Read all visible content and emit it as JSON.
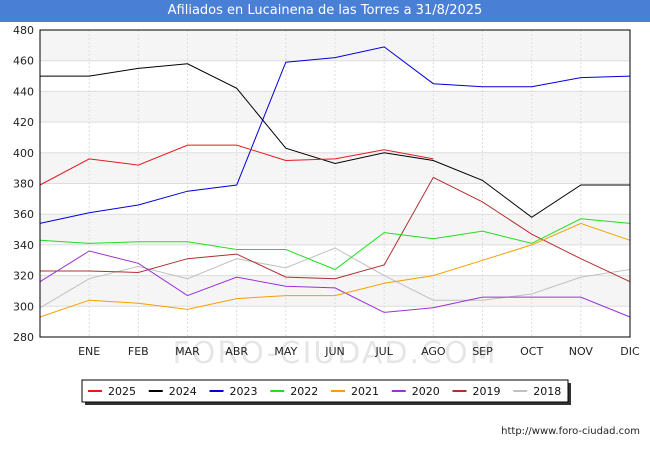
{
  "chart_data": {
    "type": "line",
    "title": "Afiliados en Lucainena de las Torres a 31/8/2025",
    "categories": [
      "",
      "ENE",
      "FEB",
      "MAR",
      "ABR",
      "MAY",
      "JUN",
      "JUL",
      "AGO",
      "SEP",
      "OCT",
      "NOV",
      "DIC"
    ],
    "ylim": [
      280,
      480
    ],
    "yticks": [
      280,
      300,
      320,
      340,
      360,
      380,
      400,
      420,
      440,
      460,
      480
    ],
    "grid": true,
    "legend_position": "bottom",
    "series": [
      {
        "name": "2025",
        "color": "#e41a1c",
        "values": [
          379,
          396,
          392,
          405,
          405,
          395,
          396,
          402,
          396,
          null,
          null,
          null,
          null
        ]
      },
      {
        "name": "2024",
        "color": "#000000",
        "values": [
          450,
          450,
          455,
          458,
          442,
          403,
          393,
          400,
          395,
          382,
          358,
          379,
          379
        ]
      },
      {
        "name": "2023",
        "color": "#0000dd",
        "values": [
          354,
          361,
          366,
          375,
          379,
          459,
          462,
          469,
          445,
          443,
          443,
          449,
          450
        ]
      },
      {
        "name": "2022",
        "color": "#22dd22",
        "values": [
          343,
          341,
          342,
          342,
          337,
          337,
          324,
          348,
          344,
          349,
          341,
          357,
          354
        ]
      },
      {
        "name": "2021",
        "color": "#f5a000",
        "values": [
          293,
          304,
          302,
          298,
          305,
          307,
          307,
          315,
          320,
          330,
          340,
          354,
          343
        ]
      },
      {
        "name": "2020",
        "color": "#9a32d6",
        "values": [
          316,
          336,
          328,
          307,
          319,
          313,
          312,
          296,
          299,
          306,
          306,
          306,
          293
        ]
      },
      {
        "name": "2019",
        "color": "#b03030",
        "values": [
          323,
          323,
          322,
          331,
          334,
          319,
          318,
          327,
          384,
          368,
          347,
          331,
          316
        ]
      },
      {
        "name": "2018",
        "color": "#c0c0c0",
        "values": [
          299,
          318,
          326,
          318,
          331,
          325,
          338,
          320,
          304,
          304,
          308,
          319,
          324
        ]
      }
    ]
  },
  "watermark": "FORO-CIUDAD.COM",
  "footer": {
    "url": "http://www.foro-ciudad.com"
  }
}
